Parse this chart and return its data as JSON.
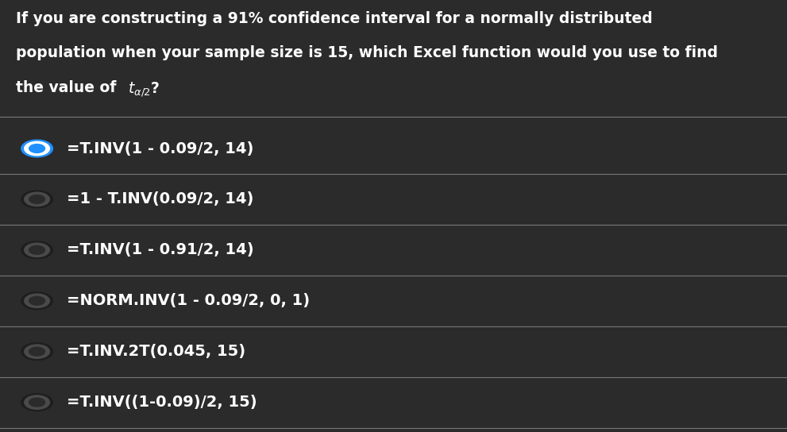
{
  "background_color": "#2b2b2b",
  "question_text_line1": "If you are constructing a 91% confidence interval for a normally distributed",
  "question_text_line2": "population when your sample size is 15, which Excel function would you use to find",
  "question_text_line3": "the value of ",
  "options": [
    {
      "text": "=T.INV(1 - 0.09/2, 14)",
      "selected": true
    },
    {
      "text": "=1 - T.INV(0.09/2, 14)",
      "selected": false
    },
    {
      "text": "=T.INV(1 - 0.91/2, 14)",
      "selected": false
    },
    {
      "text": "=NORM.INV(1 - 0.09/2, 0, 1)",
      "selected": false
    },
    {
      "text": "=T.INV.2T(0.045, 15)",
      "selected": false
    },
    {
      "text": "=T.INV((1-0.09)/2, 15)",
      "selected": false
    }
  ],
  "text_color": "#ffffff",
  "selected_color": "#1e90ff",
  "divider_color": "#777777",
  "question_fontsize": 13.5,
  "option_fontsize": 14
}
